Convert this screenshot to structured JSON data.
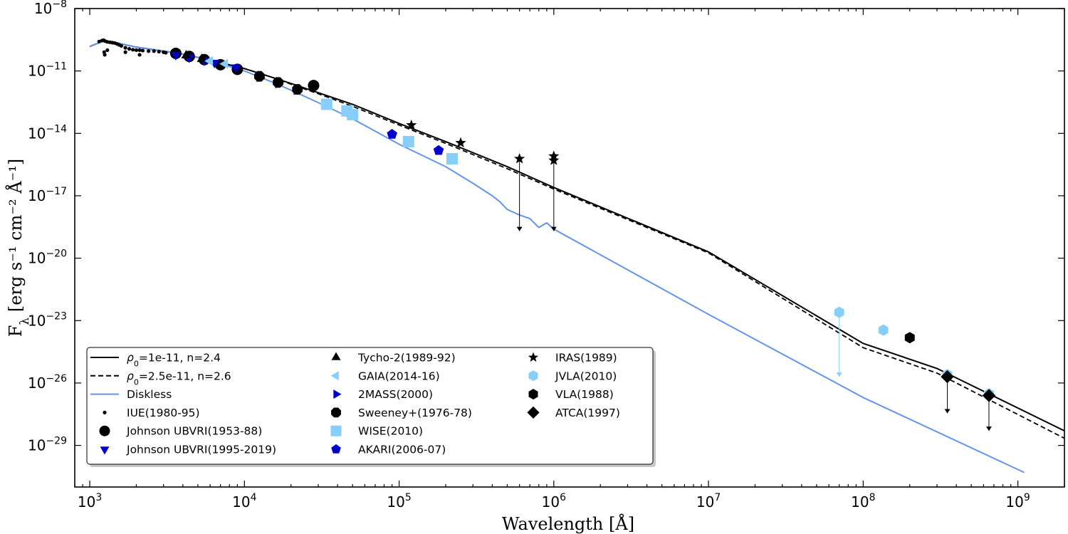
{
  "chart_data": {
    "type": "scatter",
    "xscale": "log",
    "yscale": "log",
    "xlim": [
      800,
      2000000000
    ],
    "ylim": [
      1e-31,
      1e-08
    ],
    "xlabel": "Wavelength [Å]",
    "ylabel_prefix": "F",
    "ylabel_sub": "λ",
    "ylabel_rest": "[erg s⁻¹ cm⁻² Å⁻¹]",
    "x_ticks": [
      {
        "value": 1000,
        "base": "10",
        "exp": "3"
      },
      {
        "value": 10000,
        "base": "10",
        "exp": "4"
      },
      {
        "value": 100000,
        "base": "10",
        "exp": "5"
      },
      {
        "value": 1000000,
        "base": "10",
        "exp": "6"
      },
      {
        "value": 10000000,
        "base": "10",
        "exp": "7"
      },
      {
        "value": 100000000,
        "base": "10",
        "exp": "8"
      },
      {
        "value": 1000000000,
        "base": "10",
        "exp": "9"
      }
    ],
    "y_ticks": [
      {
        "value": 1e-08,
        "base": "10",
        "exp": "−8"
      },
      {
        "value": 1e-11,
        "base": "10",
        "exp": "−11"
      },
      {
        "value": 1e-14,
        "base": "10",
        "exp": "−14"
      },
      {
        "value": 1e-17,
        "base": "10",
        "exp": "−17"
      },
      {
        "value": 1e-20,
        "base": "10",
        "exp": "−20"
      },
      {
        "value": 1e-23,
        "base": "10",
        "exp": "−23"
      },
      {
        "value": 1e-26,
        "base": "10",
        "exp": "−26"
      },
      {
        "value": 1e-29,
        "base": "10",
        "exp": "−29"
      }
    ],
    "lines": [
      {
        "name": "ρ0=1e-11, n=2.4",
        "label_rho": "ρ",
        "label_sub": "0",
        "label_rest": "=1e-11, n=2.4",
        "color": "#000000",
        "style": "solid",
        "points": [
          [
            1000,
            1.5e-10
          ],
          [
            1200,
            2.6e-10
          ],
          [
            1500,
            2.2e-10
          ],
          [
            2000,
            1.4e-10
          ],
          [
            2500,
            1.1e-10
          ],
          [
            3000,
            9e-11
          ],
          [
            4000,
            6.5e-11
          ],
          [
            5000,
            4.5e-11
          ],
          [
            7000,
            2.5e-11
          ],
          [
            10000,
            1.3e-11
          ],
          [
            15000,
            5e-12
          ],
          [
            20000,
            2.5e-12
          ],
          [
            30000,
            9e-13
          ],
          [
            50000,
            2.5e-13
          ],
          [
            100000,
            3e-14
          ],
          [
            200000,
            4e-15
          ],
          [
            500000,
            2.5e-16
          ],
          [
            1000000,
            2.5e-17
          ],
          [
            10000000,
            2e-20
          ],
          [
            100000000,
            8e-25
          ],
          [
            300000000,
            5e-26
          ],
          [
            2000000000,
            5e-29
          ]
        ]
      },
      {
        "name": "ρ0=2.5e-11, n=2.6",
        "label_rho": "ρ",
        "label_sub": "0",
        "label_rest": "=2.5e-11, n=2.6",
        "color": "#000000",
        "style": "dashed",
        "points": [
          [
            1000,
            1.5e-10
          ],
          [
            1200,
            2.6e-10
          ],
          [
            1500,
            2.2e-10
          ],
          [
            2000,
            1.4e-10
          ],
          [
            2500,
            1.1e-10
          ],
          [
            3000,
            9e-11
          ],
          [
            4000,
            6.5e-11
          ],
          [
            5000,
            4.5e-11
          ],
          [
            7000,
            2.5e-11
          ],
          [
            10000,
            1.3e-11
          ],
          [
            15000,
            5e-12
          ],
          [
            20000,
            2.3e-12
          ],
          [
            30000,
            8e-13
          ],
          [
            50000,
            2e-13
          ],
          [
            100000,
            2.5e-14
          ],
          [
            200000,
            3.3e-15
          ],
          [
            500000,
            2e-16
          ],
          [
            1000000,
            2.1e-17
          ],
          [
            10000000,
            1.8e-20
          ],
          [
            100000000,
            5e-25
          ],
          [
            300000000,
            3e-26
          ],
          [
            2000000000,
            2.2e-29
          ]
        ]
      },
      {
        "name": "Diskless",
        "label": "Diskless",
        "color": "#6495ed",
        "style": "solid",
        "points": [
          [
            1000,
            1.5e-10
          ],
          [
            1200,
            2.6e-10
          ],
          [
            1500,
            2.2e-10
          ],
          [
            2000,
            1.4e-10
          ],
          [
            2500,
            1.1e-10
          ],
          [
            3000,
            9e-11
          ],
          [
            4000,
            6.5e-11
          ],
          [
            5000,
            4.5e-11
          ],
          [
            7000,
            2.2e-11
          ],
          [
            10000,
            1e-11
          ],
          [
            15000,
            3e-12
          ],
          [
            20000,
            1.2e-12
          ],
          [
            30000,
            3e-13
          ],
          [
            50000,
            5e-14
          ],
          [
            100000,
            3e-15
          ],
          [
            200000,
            2.5e-16
          ],
          [
            300000,
            4e-17
          ],
          [
            400000,
            1e-17
          ],
          [
            450000,
            5e-18
          ],
          [
            500000,
            2.2e-18
          ],
          [
            600000,
            1.2e-18
          ],
          [
            700000,
            8e-19
          ],
          [
            800000,
            3e-19
          ],
          [
            900000,
            5e-19
          ],
          [
            1000000,
            2.5e-19
          ],
          [
            10000000,
            2e-23
          ],
          [
            100000000,
            2e-27
          ],
          [
            1100000000,
            5e-31
          ]
        ]
      }
    ],
    "series": [
      {
        "name": "IUE(1980-95)",
        "label": "IUE(1980-95)",
        "marker": "dot",
        "color": "#000000",
        "points": [
          [
            1150,
            2.6e-10
          ],
          [
            1200,
            2.9e-10
          ],
          [
            1230,
            3e-10
          ],
          [
            1260,
            2.7e-10
          ],
          [
            1300,
            2.5e-10
          ],
          [
            1350,
            2.4e-10
          ],
          [
            1400,
            2.3e-10
          ],
          [
            1450,
            2.2e-10
          ],
          [
            1500,
            2e-10
          ],
          [
            1550,
            1.8e-10
          ],
          [
            1600,
            1.6e-10
          ],
          [
            1700,
            1.3e-10
          ],
          [
            1800,
            1.15e-10
          ],
          [
            1900,
            1.05e-10
          ],
          [
            2000,
            1e-10
          ],
          [
            2100,
            1e-10
          ],
          [
            2200,
            9.5e-11
          ],
          [
            2400,
            9e-11
          ],
          [
            2600,
            9e-11
          ],
          [
            2800,
            8.5e-11
          ],
          [
            3000,
            8e-11
          ],
          [
            3100,
            7.5e-11
          ],
          [
            1250,
            6e-11
          ],
          [
            1300,
            1e-10
          ],
          [
            1240,
            8e-11
          ],
          [
            1700,
            8e-11
          ],
          [
            2100,
            6e-11
          ]
        ]
      },
      {
        "name": "Johnson UBVRI(1953-88)",
        "label": "Johnson UBVRI(1953-88)",
        "marker": "circle",
        "color": "#000000",
        "points": [
          [
            3600,
            7e-11
          ],
          [
            4400,
            5e-11
          ],
          [
            5500,
            3.5e-11
          ],
          [
            7000,
            2e-11
          ],
          [
            9000,
            1.2e-11
          ],
          [
            28000,
            2e-12
          ]
        ]
      },
      {
        "name": "Johnson UBVRI(1995-2019)",
        "label": "Johnson UBVRI(1995-2019)",
        "marker": "triangle-down",
        "color": "#0000cd",
        "points": [
          [
            3600,
            6e-11
          ],
          [
            4400,
            4.5e-11
          ],
          [
            5500,
            3.2e-11
          ],
          [
            6400,
            2.5e-11
          ],
          [
            8800,
            1.5e-11
          ]
        ]
      },
      {
        "name": "Tycho-2(1989-92)",
        "label": "Tycho-2(1989-92)",
        "marker": "triangle-up",
        "color": "#000000",
        "points": [
          [
            4200,
            5.5e-11
          ],
          [
            5300,
            3.7e-11
          ]
        ]
      },
      {
        "name": "GAIA(2014-16)",
        "label": "GAIA(2014-16)",
        "marker": "triangle-left",
        "color": "#87cefa",
        "points": [
          [
            6000,
            3e-11
          ],
          [
            7500,
            2.2e-11
          ]
        ]
      },
      {
        "name": "2MASS(2000)",
        "label": "2MASS(2000)",
        "marker": "triangle-right",
        "color": "#0000cd",
        "points": [
          [
            12500,
            5e-12
          ],
          [
            16500,
            2.5e-12
          ],
          [
            21700,
            1.2e-12
          ]
        ]
      },
      {
        "name": "Sweeney+(1976-78)",
        "label": "Sweeney+(1976-78)",
        "marker": "octagon",
        "color": "#000000",
        "points": [
          [
            12500,
            5.5e-12
          ],
          [
            16500,
            2.8e-12
          ],
          [
            22000,
            1.3e-12
          ]
        ]
      },
      {
        "name": "WISE(2010)",
        "label": "WISE(2010)",
        "marker": "square",
        "color": "#87cefa",
        "points": [
          [
            34000,
            2.5e-13
          ],
          [
            46000,
            1.2e-13
          ],
          [
            50000,
            8e-14
          ],
          [
            115000,
            4e-15
          ],
          [
            220000,
            6e-16
          ]
        ]
      },
      {
        "name": "AKARI(2006-07)",
        "label": "AKARI(2006-07)",
        "marker": "pentagon",
        "color": "#0000cd",
        "points": [
          [
            90000,
            9e-15
          ],
          [
            180000,
            1.5e-15
          ]
        ]
      },
      {
        "name": "IRAS(1989)",
        "label": "IRAS(1989)",
        "marker": "star",
        "color": "#000000",
        "points": [
          [
            120000,
            2.5e-14
          ],
          [
            250000,
            3.5e-15
          ],
          [
            600000,
            6e-16
          ],
          [
            1000000,
            8e-16
          ],
          [
            1000000,
            5e-16
          ]
        ]
      },
      {
        "name": "JVLA(2010)",
        "label": "JVLA(2010)",
        "marker": "hexagon",
        "color": "#87cefa",
        "points": [
          [
            70000000,
            2.5e-23
          ],
          [
            135000000,
            3.5e-24
          ],
          [
            350000000,
            2.5e-26
          ],
          [
            650000000,
            3e-27
          ]
        ]
      },
      {
        "name": "VLA(1988)",
        "label": "VLA(1988)",
        "marker": "hexagon",
        "color": "#000000",
        "points": [
          [
            200000000,
            1.5e-24
          ]
        ]
      },
      {
        "name": "ATCA(1997)",
        "label": "ATCA(1997)",
        "marker": "diamond",
        "color": "#000000",
        "points": [
          [
            350000000,
            2e-26
          ],
          [
            650000000,
            2.5e-27
          ]
        ]
      }
    ],
    "upper_limits": [
      {
        "x": 600000,
        "y_top": 6e-16,
        "y_bottom": 2e-19,
        "color": "#000000"
      },
      {
        "x": 1000000,
        "y_top": 5e-16,
        "y_bottom": 2e-19,
        "color": "#000000"
      },
      {
        "x": 70000000,
        "y_top": 2.5e-23,
        "y_bottom": 2e-26,
        "color": "#87cefa"
      },
      {
        "x": 350000000,
        "y_top": 2e-26,
        "y_bottom": 3.5e-28,
        "color": "#000000"
      },
      {
        "x": 650000000,
        "y_top": 2.5e-27,
        "y_bottom": 5e-29,
        "color": "#000000"
      }
    ],
    "legend_location": "lower-left"
  }
}
